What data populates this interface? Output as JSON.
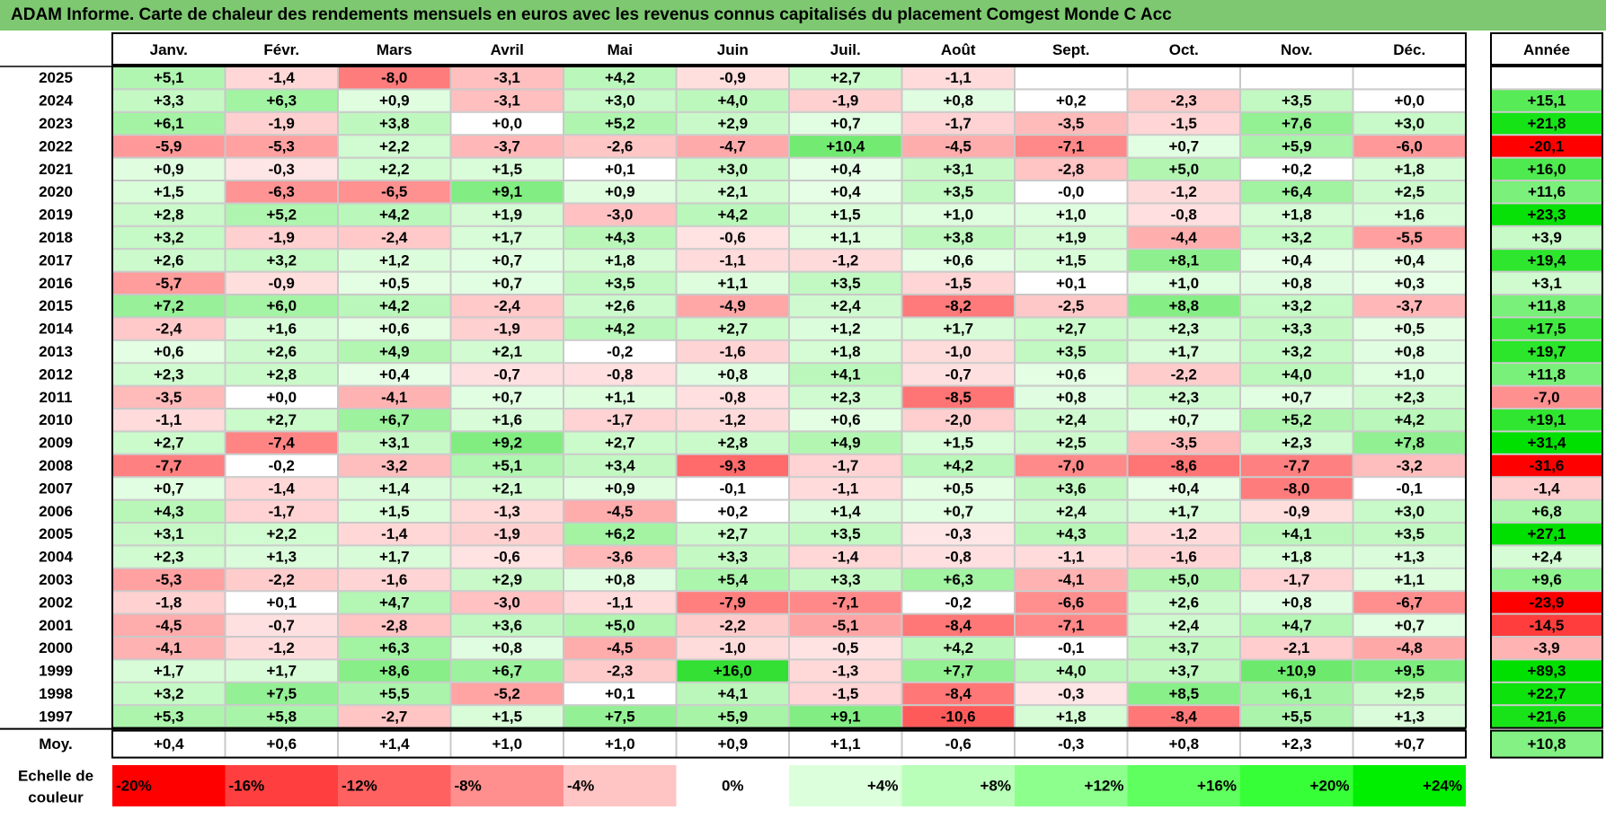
{
  "title": "ADAM Informe. Carte de chaleur des rendements mensuels en euros avec les revenus connus capitalisés du placement Comgest Monde C Acc",
  "chart_data": {
    "type": "heatmap",
    "months": [
      "Janv.",
      "Févr.",
      "Mars",
      "Avril",
      "Mai",
      "Juin",
      "Juil.",
      "Août",
      "Sept.",
      "Oct.",
      "Nov.",
      "Déc."
    ],
    "year_header": "Année",
    "rows": [
      {
        "label": "2025",
        "values": [
          "+5,1",
          "-1,4",
          "-8,0",
          "-3,1",
          "+4,2",
          "-0,9",
          "+2,7",
          "-1,1",
          "",
          "",
          "",
          ""
        ],
        "annual": ""
      },
      {
        "label": "2024",
        "values": [
          "+3,3",
          "+6,3",
          "+0,9",
          "-3,1",
          "+3,0",
          "+4,0",
          "-1,9",
          "+0,8",
          "+0,2",
          "-2,3",
          "+3,5",
          "+0,0"
        ],
        "annual": "+15,1"
      },
      {
        "label": "2023",
        "values": [
          "+6,1",
          "-1,9",
          "+3,8",
          "+0,0",
          "+5,2",
          "+2,9",
          "+0,7",
          "-1,7",
          "-3,5",
          "-1,5",
          "+7,6",
          "+3,0"
        ],
        "annual": "+21,8"
      },
      {
        "label": "2022",
        "values": [
          "-5,9",
          "-5,3",
          "+2,2",
          "-3,7",
          "-2,6",
          "-4,7",
          "+10,4",
          "-4,5",
          "-7,1",
          "+0,7",
          "+5,9",
          "-6,0"
        ],
        "annual": "-20,1"
      },
      {
        "label": "2021",
        "values": [
          "+0,9",
          "-0,3",
          "+2,2",
          "+1,5",
          "+0,1",
          "+3,0",
          "+0,4",
          "+3,1",
          "-2,8",
          "+5,0",
          "+0,2",
          "+1,8"
        ],
        "annual": "+16,0"
      },
      {
        "label": "2020",
        "values": [
          "+1,5",
          "-6,3",
          "-6,5",
          "+9,1",
          "+0,9",
          "+2,1",
          "+0,4",
          "+3,5",
          "-0,0",
          "-1,2",
          "+6,4",
          "+2,5"
        ],
        "annual": "+11,6"
      },
      {
        "label": "2019",
        "values": [
          "+2,8",
          "+5,2",
          "+4,2",
          "+1,9",
          "-3,0",
          "+4,2",
          "+1,5",
          "+1,0",
          "+1,0",
          "-0,8",
          "+1,8",
          "+1,6"
        ],
        "annual": "+23,3"
      },
      {
        "label": "2018",
        "values": [
          "+3,2",
          "-1,9",
          "-2,4",
          "+1,7",
          "+4,3",
          "-0,6",
          "+1,1",
          "+3,8",
          "+1,9",
          "-4,4",
          "+3,2",
          "-5,5"
        ],
        "annual": "+3,9"
      },
      {
        "label": "2017",
        "values": [
          "+2,6",
          "+3,2",
          "+1,2",
          "+0,7",
          "+1,8",
          "-1,1",
          "-1,2",
          "+0,6",
          "+1,5",
          "+8,1",
          "+0,4",
          "+0,4"
        ],
        "annual": "+19,4"
      },
      {
        "label": "2016",
        "values": [
          "-5,7",
          "-0,9",
          "+0,5",
          "+0,7",
          "+3,5",
          "+1,1",
          "+3,5",
          "-1,5",
          "+0,1",
          "+1,0",
          "+0,8",
          "+0,3"
        ],
        "annual": "+3,1"
      },
      {
        "label": "2015",
        "values": [
          "+7,2",
          "+6,0",
          "+4,2",
          "-2,4",
          "+2,6",
          "-4,9",
          "+2,4",
          "-8,2",
          "-2,5",
          "+8,8",
          "+3,2",
          "-3,7"
        ],
        "annual": "+11,8"
      },
      {
        "label": "2014",
        "values": [
          "-2,4",
          "+1,6",
          "+0,6",
          "-1,9",
          "+4,2",
          "+2,7",
          "+1,2",
          "+1,7",
          "+2,7",
          "+2,3",
          "+3,3",
          "+0,5"
        ],
        "annual": "+17,5"
      },
      {
        "label": "2013",
        "values": [
          "+0,6",
          "+2,6",
          "+4,9",
          "+2,1",
          "-0,2",
          "-1,6",
          "+1,8",
          "-1,0",
          "+3,5",
          "+1,7",
          "+3,2",
          "+0,8"
        ],
        "annual": "+19,7"
      },
      {
        "label": "2012",
        "values": [
          "+2,3",
          "+2,8",
          "+0,4",
          "-0,7",
          "-0,8",
          "+0,8",
          "+4,1",
          "-0,7",
          "+0,6",
          "-2,2",
          "+4,0",
          "+1,0"
        ],
        "annual": "+11,8"
      },
      {
        "label": "2011",
        "values": [
          "-3,5",
          "+0,0",
          "-4,1",
          "+0,7",
          "+1,1",
          "-0,8",
          "+2,3",
          "-8,5",
          "+0,8",
          "+2,3",
          "+0,7",
          "+2,3"
        ],
        "annual": "-7,0"
      },
      {
        "label": "2010",
        "values": [
          "-1,1",
          "+2,7",
          "+6,7",
          "+1,6",
          "-1,7",
          "-1,2",
          "+0,6",
          "-2,0",
          "+2,4",
          "+0,7",
          "+5,2",
          "+4,2"
        ],
        "annual": "+19,1"
      },
      {
        "label": "2009",
        "values": [
          "+2,7",
          "-7,4",
          "+3,1",
          "+9,2",
          "+2,7",
          "+2,8",
          "+4,9",
          "+1,5",
          "+2,5",
          "-3,5",
          "+2,3",
          "+7,8"
        ],
        "annual": "+31,4"
      },
      {
        "label": "2008",
        "values": [
          "-7,7",
          "-0,2",
          "-3,2",
          "+5,1",
          "+3,4",
          "-9,3",
          "-1,7",
          "+4,2",
          "-7,0",
          "-8,6",
          "-7,7",
          "-3,2"
        ],
        "annual": "-31,6"
      },
      {
        "label": "2007",
        "values": [
          "+0,7",
          "-1,4",
          "+1,4",
          "+2,1",
          "+0,9",
          "-0,1",
          "-1,1",
          "+0,5",
          "+3,6",
          "+0,4",
          "-8,0",
          "-0,1"
        ],
        "annual": "-1,4"
      },
      {
        "label": "2006",
        "values": [
          "+4,3",
          "-1,7",
          "+1,5",
          "-1,3",
          "-4,5",
          "+0,2",
          "+1,4",
          "+0,7",
          "+2,4",
          "+1,7",
          "-0,9",
          "+3,0"
        ],
        "annual": "+6,8"
      },
      {
        "label": "2005",
        "values": [
          "+3,1",
          "+2,2",
          "-1,4",
          "-1,9",
          "+6,2",
          "+2,7",
          "+3,5",
          "-0,3",
          "+4,3",
          "-1,2",
          "+4,1",
          "+3,5"
        ],
        "annual": "+27,1"
      },
      {
        "label": "2004",
        "values": [
          "+2,3",
          "+1,3",
          "+1,7",
          "-0,6",
          "-3,6",
          "+3,3",
          "-1,4",
          "-0,8",
          "-1,1",
          "-1,6",
          "+1,8",
          "+1,3"
        ],
        "annual": "+2,4"
      },
      {
        "label": "2003",
        "values": [
          "-5,3",
          "-2,2",
          "-1,6",
          "+2,9",
          "+0,8",
          "+5,4",
          "+3,3",
          "+6,3",
          "-4,1",
          "+5,0",
          "-1,7",
          "+1,1"
        ],
        "annual": "+9,6"
      },
      {
        "label": "2002",
        "values": [
          "-1,8",
          "+0,1",
          "+4,7",
          "-3,0",
          "-1,1",
          "-7,9",
          "-7,1",
          "-0,2",
          "-6,6",
          "+2,6",
          "+0,8",
          "-6,7"
        ],
        "annual": "-23,9"
      },
      {
        "label": "2001",
        "values": [
          "-4,5",
          "-0,7",
          "-2,8",
          "+3,6",
          "+5,0",
          "-2,2",
          "-5,1",
          "-8,4",
          "-7,1",
          "+2,4",
          "+4,7",
          "+0,7"
        ],
        "annual": "-14,5"
      },
      {
        "label": "2000",
        "values": [
          "-4,1",
          "-1,2",
          "+6,3",
          "+0,8",
          "-4,5",
          "-1,0",
          "-0,5",
          "+4,2",
          "-0,1",
          "+3,7",
          "-2,1",
          "-4,8"
        ],
        "annual": "-3,9"
      },
      {
        "label": "1999",
        "values": [
          "+1,7",
          "+1,7",
          "+8,6",
          "+6,7",
          "-2,3",
          "+16,0",
          "-1,3",
          "+7,7",
          "+4,0",
          "+3,7",
          "+10,9",
          "+9,5"
        ],
        "annual": "+89,3"
      },
      {
        "label": "1998",
        "values": [
          "+3,2",
          "+7,5",
          "+5,5",
          "-5,2",
          "+0,1",
          "+4,1",
          "-1,5",
          "-8,4",
          "-0,3",
          "+8,5",
          "+6,1",
          "+2,5"
        ],
        "annual": "+22,7"
      },
      {
        "label": "1997",
        "values": [
          "+5,3",
          "+5,8",
          "-2,7",
          "+1,5",
          "+7,5",
          "+5,9",
          "+9,1",
          "-10,6",
          "+1,8",
          "-8,4",
          "+5,5",
          "+1,3"
        ],
        "annual": "+21,6"
      }
    ],
    "average": {
      "label": "Moy.",
      "values": [
        "+0,4",
        "+0,6",
        "+1,4",
        "+1,0",
        "+1,0",
        "+0,9",
        "+1,1",
        "-0,6",
        "-0,3",
        "+0,8",
        "+2,3",
        "+0,7"
      ],
      "annual": "+10,8"
    },
    "scale": {
      "label_line1": "Echelle de",
      "label_line2": "couleur",
      "steps": [
        {
          "label": "-20%",
          "color": "#ff0000"
        },
        {
          "label": "-16%",
          "color": "#ff3f3f"
        },
        {
          "label": "-12%",
          "color": "#ff6161"
        },
        {
          "label": "-8%",
          "color": "#ff8f8f"
        },
        {
          "label": "-4%",
          "color": "#ffc4c4"
        },
        {
          "label": "0%",
          "color": "#ffffff"
        },
        {
          "label": "+4%",
          "color": "#dcffdc"
        },
        {
          "label": "+8%",
          "color": "#b9ffb9"
        },
        {
          "label": "+12%",
          "color": "#8dff8d"
        },
        {
          "label": "+16%",
          "color": "#5eff5e"
        },
        {
          "label": "+20%",
          "color": "#37ff37"
        },
        {
          "label": "+24%",
          "color": "#00ee00"
        }
      ]
    },
    "colors": {
      "title_bar": "#7dc870",
      "grid_line": "#c8c8c8",
      "frame": "#000000"
    }
  }
}
